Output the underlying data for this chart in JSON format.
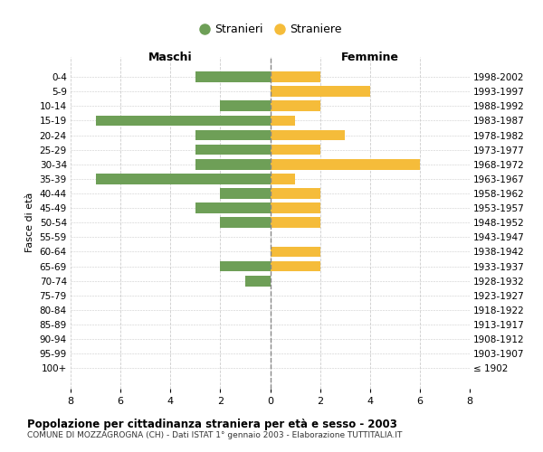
{
  "age_groups": [
    "0-4",
    "5-9",
    "10-14",
    "15-19",
    "20-24",
    "25-29",
    "30-34",
    "35-39",
    "40-44",
    "45-49",
    "50-54",
    "55-59",
    "60-64",
    "65-69",
    "70-74",
    "75-79",
    "80-84",
    "85-89",
    "90-94",
    "95-99",
    "100+"
  ],
  "birth_years": [
    "1998-2002",
    "1993-1997",
    "1988-1992",
    "1983-1987",
    "1978-1982",
    "1973-1977",
    "1968-1972",
    "1963-1967",
    "1958-1962",
    "1953-1957",
    "1948-1952",
    "1943-1947",
    "1938-1942",
    "1933-1937",
    "1928-1932",
    "1923-1927",
    "1918-1922",
    "1913-1917",
    "1908-1912",
    "1903-1907",
    "≤ 1902"
  ],
  "maschi": [
    3,
    0,
    2,
    7,
    3,
    3,
    3,
    7,
    2,
    3,
    2,
    0,
    0,
    2,
    1,
    0,
    0,
    0,
    0,
    0,
    0
  ],
  "femmine": [
    2,
    4,
    2,
    1,
    3,
    2,
    6,
    1,
    2,
    2,
    2,
    0,
    2,
    2,
    0,
    0,
    0,
    0,
    0,
    0,
    0
  ],
  "maschi_color": "#6e9f57",
  "femmine_color": "#f5bc3a",
  "background_color": "#ffffff",
  "grid_color": "#cccccc",
  "title": "Popolazione per cittadinanza straniera per età e sesso - 2003",
  "subtitle": "COMUNE DI MOZZAGROGNA (CH) - Dati ISTAT 1° gennaio 2003 - Elaborazione TUTTITALIA.IT",
  "xlabel_left": "Maschi",
  "xlabel_right": "Femmine",
  "ylabel_left": "Fasce di età",
  "legend_maschi": "Stranieri",
  "legend_femmine": "Straniere",
  "xlim": 8,
  "bar_height": 0.72
}
